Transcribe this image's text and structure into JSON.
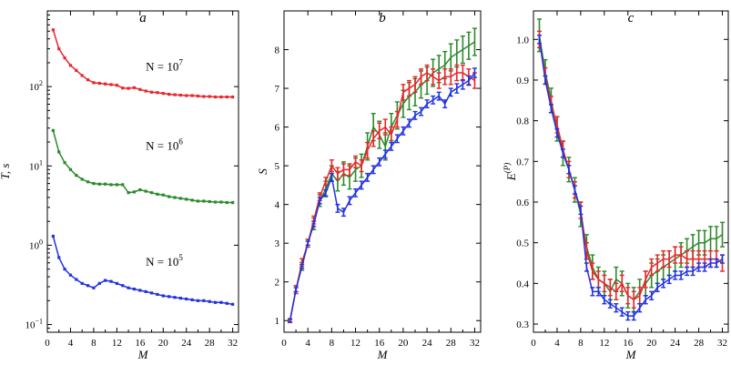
{
  "chart_data": [
    {
      "type": "line",
      "title": "a",
      "xlabel": "M",
      "ylabel": "T, s",
      "xlim": [
        0,
        33
      ],
      "ylim": [
        0.08,
        900
      ],
      "yscale": "log",
      "xticks": [
        0,
        4,
        8,
        12,
        16,
        20,
        24,
        28,
        32
      ],
      "yticks": [
        0.1,
        1,
        10,
        100
      ],
      "ytick_labels": [
        {
          "base": "10",
          "exp": "−1"
        },
        {
          "base": "10",
          "exp": "0"
        },
        {
          "base": "10",
          "exp": "1"
        },
        {
          "base": "10",
          "exp": "2"
        }
      ],
      "annotations": [
        {
          "text": "N = 10",
          "exp": "7",
          "x": 17,
          "y": 160
        },
        {
          "text": "N = 10",
          "exp": "6",
          "x": 17,
          "y": 16
        },
        {
          "text": "N = 10",
          "exp": "5",
          "x": 17,
          "y": 0.55
        }
      ],
      "series": [
        {
          "color": "#e8262b",
          "marker": "square",
          "x": [
            1,
            2,
            3,
            4,
            5,
            6,
            7,
            8,
            9,
            10,
            11,
            12,
            13,
            14,
            15,
            16,
            17,
            18,
            19,
            20,
            21,
            22,
            23,
            24,
            25,
            26,
            27,
            28,
            29,
            30,
            31,
            32
          ],
          "y": [
            520,
            300,
            230,
            185,
            160,
            138,
            122,
            112,
            110,
            108,
            106,
            104,
            96,
            95,
            97,
            92,
            88,
            85,
            84,
            82,
            80,
            79,
            78,
            77,
            77,
            76,
            75,
            75,
            74,
            74,
            74,
            74
          ]
        },
        {
          "color": "#2a8a2a",
          "marker": "square",
          "x": [
            1,
            2,
            3,
            4,
            5,
            6,
            7,
            8,
            9,
            10,
            11,
            12,
            13,
            14,
            15,
            16,
            17,
            18,
            19,
            20,
            21,
            22,
            23,
            24,
            25,
            26,
            27,
            28,
            29,
            30,
            31,
            32
          ],
          "y": [
            28,
            15,
            11,
            9,
            7.6,
            6.8,
            6.3,
            6.0,
            5.9,
            5.9,
            5.8,
            5.8,
            5.8,
            4.6,
            4.7,
            5.0,
            4.8,
            4.6,
            4.4,
            4.3,
            4.1,
            4.0,
            3.9,
            3.8,
            3.7,
            3.6,
            3.6,
            3.55,
            3.5,
            3.5,
            3.45,
            3.45
          ]
        },
        {
          "color": "#2233dd",
          "marker": "square",
          "x": [
            1,
            2,
            3,
            4,
            5,
            6,
            7,
            8,
            9,
            10,
            11,
            12,
            13,
            14,
            15,
            16,
            17,
            18,
            19,
            20,
            21,
            22,
            23,
            24,
            25,
            26,
            27,
            28,
            29,
            30,
            31,
            32
          ],
          "y": [
            1.3,
            0.7,
            0.5,
            0.42,
            0.37,
            0.33,
            0.31,
            0.29,
            0.33,
            0.36,
            0.35,
            0.33,
            0.31,
            0.29,
            0.28,
            0.27,
            0.26,
            0.25,
            0.24,
            0.23,
            0.225,
            0.22,
            0.215,
            0.21,
            0.205,
            0.2,
            0.2,
            0.195,
            0.19,
            0.19,
            0.185,
            0.18
          ]
        }
      ]
    },
    {
      "type": "line",
      "title": "b",
      "xlabel": "M",
      "ylabel": "S",
      "xlim": [
        0,
        33
      ],
      "ylim": [
        0.7,
        9.0
      ],
      "xticks": [
        0,
        4,
        8,
        12,
        16,
        20,
        24,
        28,
        32
      ],
      "yticks": [
        1,
        2,
        3,
        4,
        5,
        6,
        7,
        8
      ],
      "series": [
        {
          "color": "#2a8a2a",
          "marker": "errorbar",
          "x": [
            1,
            2,
            3,
            4,
            5,
            6,
            7,
            8,
            9,
            10,
            11,
            12,
            13,
            14,
            15,
            16,
            17,
            18,
            19,
            20,
            21,
            22,
            23,
            24,
            25,
            26,
            27,
            28,
            29,
            30,
            31,
            32
          ],
          "y": [
            1.0,
            1.8,
            2.4,
            3.0,
            3.5,
            4.1,
            4.4,
            4.8,
            4.6,
            4.8,
            4.7,
            4.9,
            5.0,
            5.5,
            6.0,
            5.8,
            5.5,
            6.0,
            6.3,
            6.6,
            6.8,
            6.9,
            7.1,
            7.2,
            7.4,
            7.5,
            7.6,
            7.8,
            7.9,
            8.0,
            8.1,
            8.2
          ],
          "err": [
            0.05,
            0.1,
            0.1,
            0.1,
            0.15,
            0.15,
            0.2,
            0.2,
            0.25,
            0.3,
            0.3,
            0.3,
            0.3,
            0.35,
            0.35,
            0.35,
            0.35,
            0.35,
            0.35,
            0.35,
            0.35,
            0.35,
            0.35,
            0.35,
            0.35,
            0.35,
            0.35,
            0.35,
            0.35,
            0.35,
            0.35,
            0.35
          ]
        },
        {
          "color": "#e8262b",
          "marker": "errorbar",
          "x": [
            1,
            2,
            3,
            4,
            5,
            6,
            7,
            8,
            9,
            10,
            11,
            12,
            13,
            14,
            15,
            16,
            17,
            18,
            19,
            20,
            21,
            22,
            23,
            24,
            25,
            26,
            27,
            28,
            29,
            30,
            31,
            32
          ],
          "y": [
            1.0,
            1.8,
            2.5,
            3.0,
            3.6,
            4.2,
            4.6,
            5.0,
            4.8,
            4.9,
            4.9,
            5.1,
            5.0,
            5.4,
            5.7,
            5.9,
            6.0,
            5.8,
            6.2,
            6.9,
            7.0,
            7.1,
            7.3,
            7.4,
            7.3,
            7.2,
            7.3,
            7.3,
            7.4,
            7.4,
            7.3,
            7.2
          ],
          "err": [
            0.05,
            0.1,
            0.1,
            0.1,
            0.1,
            0.1,
            0.1,
            0.15,
            0.15,
            0.15,
            0.15,
            0.15,
            0.15,
            0.2,
            0.2,
            0.2,
            0.2,
            0.2,
            0.2,
            0.2,
            0.2,
            0.2,
            0.2,
            0.2,
            0.2,
            0.2,
            0.2,
            0.2,
            0.2,
            0.2,
            0.2,
            0.2
          ]
        },
        {
          "color": "#2233dd",
          "marker": "errorbar",
          "x": [
            1,
            2,
            3,
            4,
            5,
            6,
            7,
            8,
            9,
            10,
            11,
            12,
            13,
            14,
            15,
            16,
            17,
            18,
            19,
            20,
            21,
            22,
            23,
            24,
            25,
            26,
            27,
            28,
            29,
            30,
            31,
            32
          ],
          "y": [
            1.0,
            1.8,
            2.4,
            3.0,
            3.5,
            4.1,
            4.3,
            4.7,
            3.9,
            3.8,
            4.1,
            4.3,
            4.5,
            4.7,
            4.9,
            5.1,
            5.3,
            5.5,
            5.7,
            5.9,
            6.1,
            6.3,
            6.4,
            6.6,
            6.7,
            6.8,
            6.6,
            6.9,
            7.0,
            7.1,
            7.2,
            7.4
          ],
          "err": [
            0.03,
            0.05,
            0.05,
            0.05,
            0.07,
            0.08,
            0.08,
            0.1,
            0.1,
            0.1,
            0.1,
            0.1,
            0.1,
            0.1,
            0.1,
            0.1,
            0.1,
            0.1,
            0.1,
            0.1,
            0.1,
            0.1,
            0.1,
            0.1,
            0.1,
            0.1,
            0.1,
            0.1,
            0.12,
            0.12,
            0.12,
            0.12
          ]
        }
      ]
    },
    {
      "type": "line",
      "title": "c",
      "xlabel": "M",
      "ylabel": "E",
      "ylabel_sup": "(P)",
      "xlim": [
        0,
        33
      ],
      "ylim": [
        0.28,
        1.07
      ],
      "xticks": [
        0,
        4,
        8,
        12,
        16,
        20,
        24,
        28,
        32
      ],
      "yticks": [
        0.3,
        0.4,
        0.5,
        0.6,
        0.7,
        0.8,
        0.9,
        1.0
      ],
      "ytick_labels": [
        "0.3",
        "0.4",
        "0.5",
        "0.6",
        "0.7",
        "0.8",
        "0.9",
        "1.0"
      ],
      "series": [
        {
          "color": "#2a8a2a",
          "marker": "errorbar",
          "x": [
            1,
            2,
            3,
            4,
            5,
            6,
            7,
            8,
            9,
            10,
            11,
            12,
            13,
            14,
            15,
            16,
            17,
            18,
            19,
            20,
            21,
            22,
            23,
            24,
            25,
            26,
            27,
            28,
            29,
            30,
            31,
            32
          ],
          "y": [
            1.01,
            0.92,
            0.85,
            0.78,
            0.72,
            0.68,
            0.63,
            0.57,
            0.49,
            0.44,
            0.41,
            0.4,
            0.38,
            0.41,
            0.4,
            0.37,
            0.36,
            0.38,
            0.4,
            0.42,
            0.43,
            0.44,
            0.45,
            0.46,
            0.47,
            0.48,
            0.49,
            0.5,
            0.5,
            0.51,
            0.51,
            0.52
          ],
          "err": [
            0.04,
            0.03,
            0.03,
            0.03,
            0.03,
            0.03,
            0.03,
            0.03,
            0.03,
            0.03,
            0.03,
            0.03,
            0.03,
            0.03,
            0.03,
            0.03,
            0.03,
            0.03,
            0.03,
            0.03,
            0.03,
            0.03,
            0.03,
            0.03,
            0.03,
            0.03,
            0.03,
            0.03,
            0.03,
            0.03,
            0.03,
            0.03
          ]
        },
        {
          "color": "#e8262b",
          "marker": "errorbar",
          "x": [
            1,
            2,
            3,
            4,
            5,
            6,
            7,
            8,
            9,
            10,
            11,
            12,
            13,
            14,
            15,
            16,
            17,
            18,
            19,
            20,
            21,
            22,
            23,
            24,
            25,
            26,
            27,
            28,
            29,
            30,
            31,
            32
          ],
          "y": [
            1.0,
            0.91,
            0.84,
            0.79,
            0.73,
            0.68,
            0.63,
            0.58,
            0.48,
            0.43,
            0.41,
            0.4,
            0.39,
            0.38,
            0.4,
            0.37,
            0.36,
            0.37,
            0.41,
            0.44,
            0.45,
            0.46,
            0.46,
            0.47,
            0.47,
            0.46,
            0.46,
            0.46,
            0.46,
            0.46,
            0.46,
            0.45
          ],
          "err": [
            0.02,
            0.02,
            0.02,
            0.02,
            0.02,
            0.02,
            0.02,
            0.02,
            0.02,
            0.02,
            0.02,
            0.02,
            0.02,
            0.02,
            0.02,
            0.02,
            0.02,
            0.02,
            0.02,
            0.02,
            0.02,
            0.02,
            0.02,
            0.02,
            0.02,
            0.02,
            0.02,
            0.02,
            0.02,
            0.02,
            0.02,
            0.02
          ]
        },
        {
          "color": "#2233dd",
          "marker": "errorbar",
          "x": [
            1,
            2,
            3,
            4,
            5,
            6,
            7,
            8,
            9,
            10,
            11,
            12,
            13,
            14,
            15,
            16,
            17,
            18,
            19,
            20,
            21,
            22,
            23,
            24,
            25,
            26,
            27,
            28,
            29,
            30,
            31,
            32
          ],
          "y": [
            1.0,
            0.9,
            0.83,
            0.77,
            0.72,
            0.68,
            0.63,
            0.58,
            0.44,
            0.38,
            0.38,
            0.36,
            0.35,
            0.34,
            0.33,
            0.32,
            0.32,
            0.34,
            0.36,
            0.37,
            0.39,
            0.4,
            0.41,
            0.42,
            0.42,
            0.43,
            0.43,
            0.44,
            0.44,
            0.45,
            0.45,
            0.46
          ],
          "err": [
            0.01,
            0.01,
            0.01,
            0.01,
            0.01,
            0.01,
            0.01,
            0.01,
            0.01,
            0.01,
            0.01,
            0.01,
            0.01,
            0.01,
            0.01,
            0.01,
            0.01,
            0.01,
            0.01,
            0.01,
            0.01,
            0.01,
            0.01,
            0.01,
            0.01,
            0.01,
            0.01,
            0.01,
            0.01,
            0.01,
            0.01,
            0.01
          ]
        }
      ]
    }
  ]
}
